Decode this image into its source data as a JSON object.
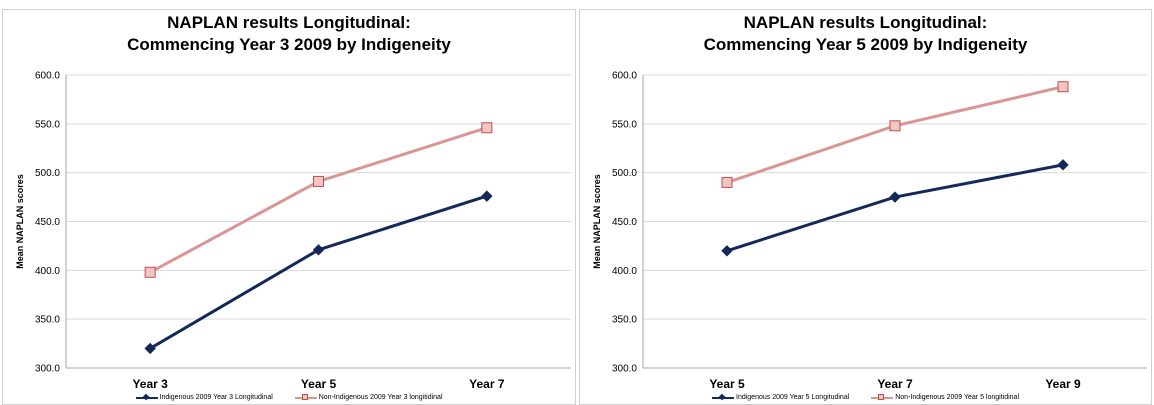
{
  "chart_data": [
    {
      "type": "line",
      "title": "NAPLAN results Longitudinal:\nCommencing Year 3 2009 by Indigeneity",
      "ylabel": "Mean NAPLAN scores",
      "xlabel": "",
      "categories": [
        "Year 3",
        "Year 5",
        "Year 7"
      ],
      "ylim": [
        300,
        600
      ],
      "yticks": [
        600,
        550,
        500,
        450,
        400,
        350,
        300
      ],
      "ytick_labels": [
        "600.0",
        "550.0",
        "500.0",
        "450.0",
        "400.0",
        "350.0",
        "300.0"
      ],
      "grid": true,
      "legend": "bottom",
      "series": [
        {
          "name": "Indigenous 2009 Year 3 Longitudinal",
          "values": [
            320,
            421,
            476
          ],
          "color": "#14285a",
          "marker": "diamond"
        },
        {
          "name": "Non-Indigenous 2009 Year 3 longitidinal",
          "values": [
            398,
            491,
            546
          ],
          "color": "#d99694",
          "marker": "square"
        }
      ]
    },
    {
      "type": "line",
      "title": "NAPLAN results Longitudinal:\nCommencing Year 5 2009 by Indigeneity",
      "ylabel": "Mean NAPLAN scores",
      "xlabel": "",
      "categories": [
        "Year 5",
        "Year 7",
        "Year 9"
      ],
      "ylim": [
        300,
        600
      ],
      "yticks": [
        600,
        550,
        500,
        450,
        400,
        350,
        300
      ],
      "ytick_labels": [
        "600.0",
        "550.0",
        "500.0",
        "450.0",
        "400.0",
        "350.0",
        "300.0"
      ],
      "grid": true,
      "legend": "bottom",
      "series": [
        {
          "name": "Indigenous 2009 Year 5 Longitudinal",
          "values": [
            420,
            475,
            508
          ],
          "color": "#14285a",
          "marker": "diamond"
        },
        {
          "name": "Non-Indigenous 2009 Year 5 longitidinal",
          "values": [
            490,
            548,
            588
          ],
          "color": "#d99694",
          "marker": "square"
        }
      ]
    }
  ]
}
